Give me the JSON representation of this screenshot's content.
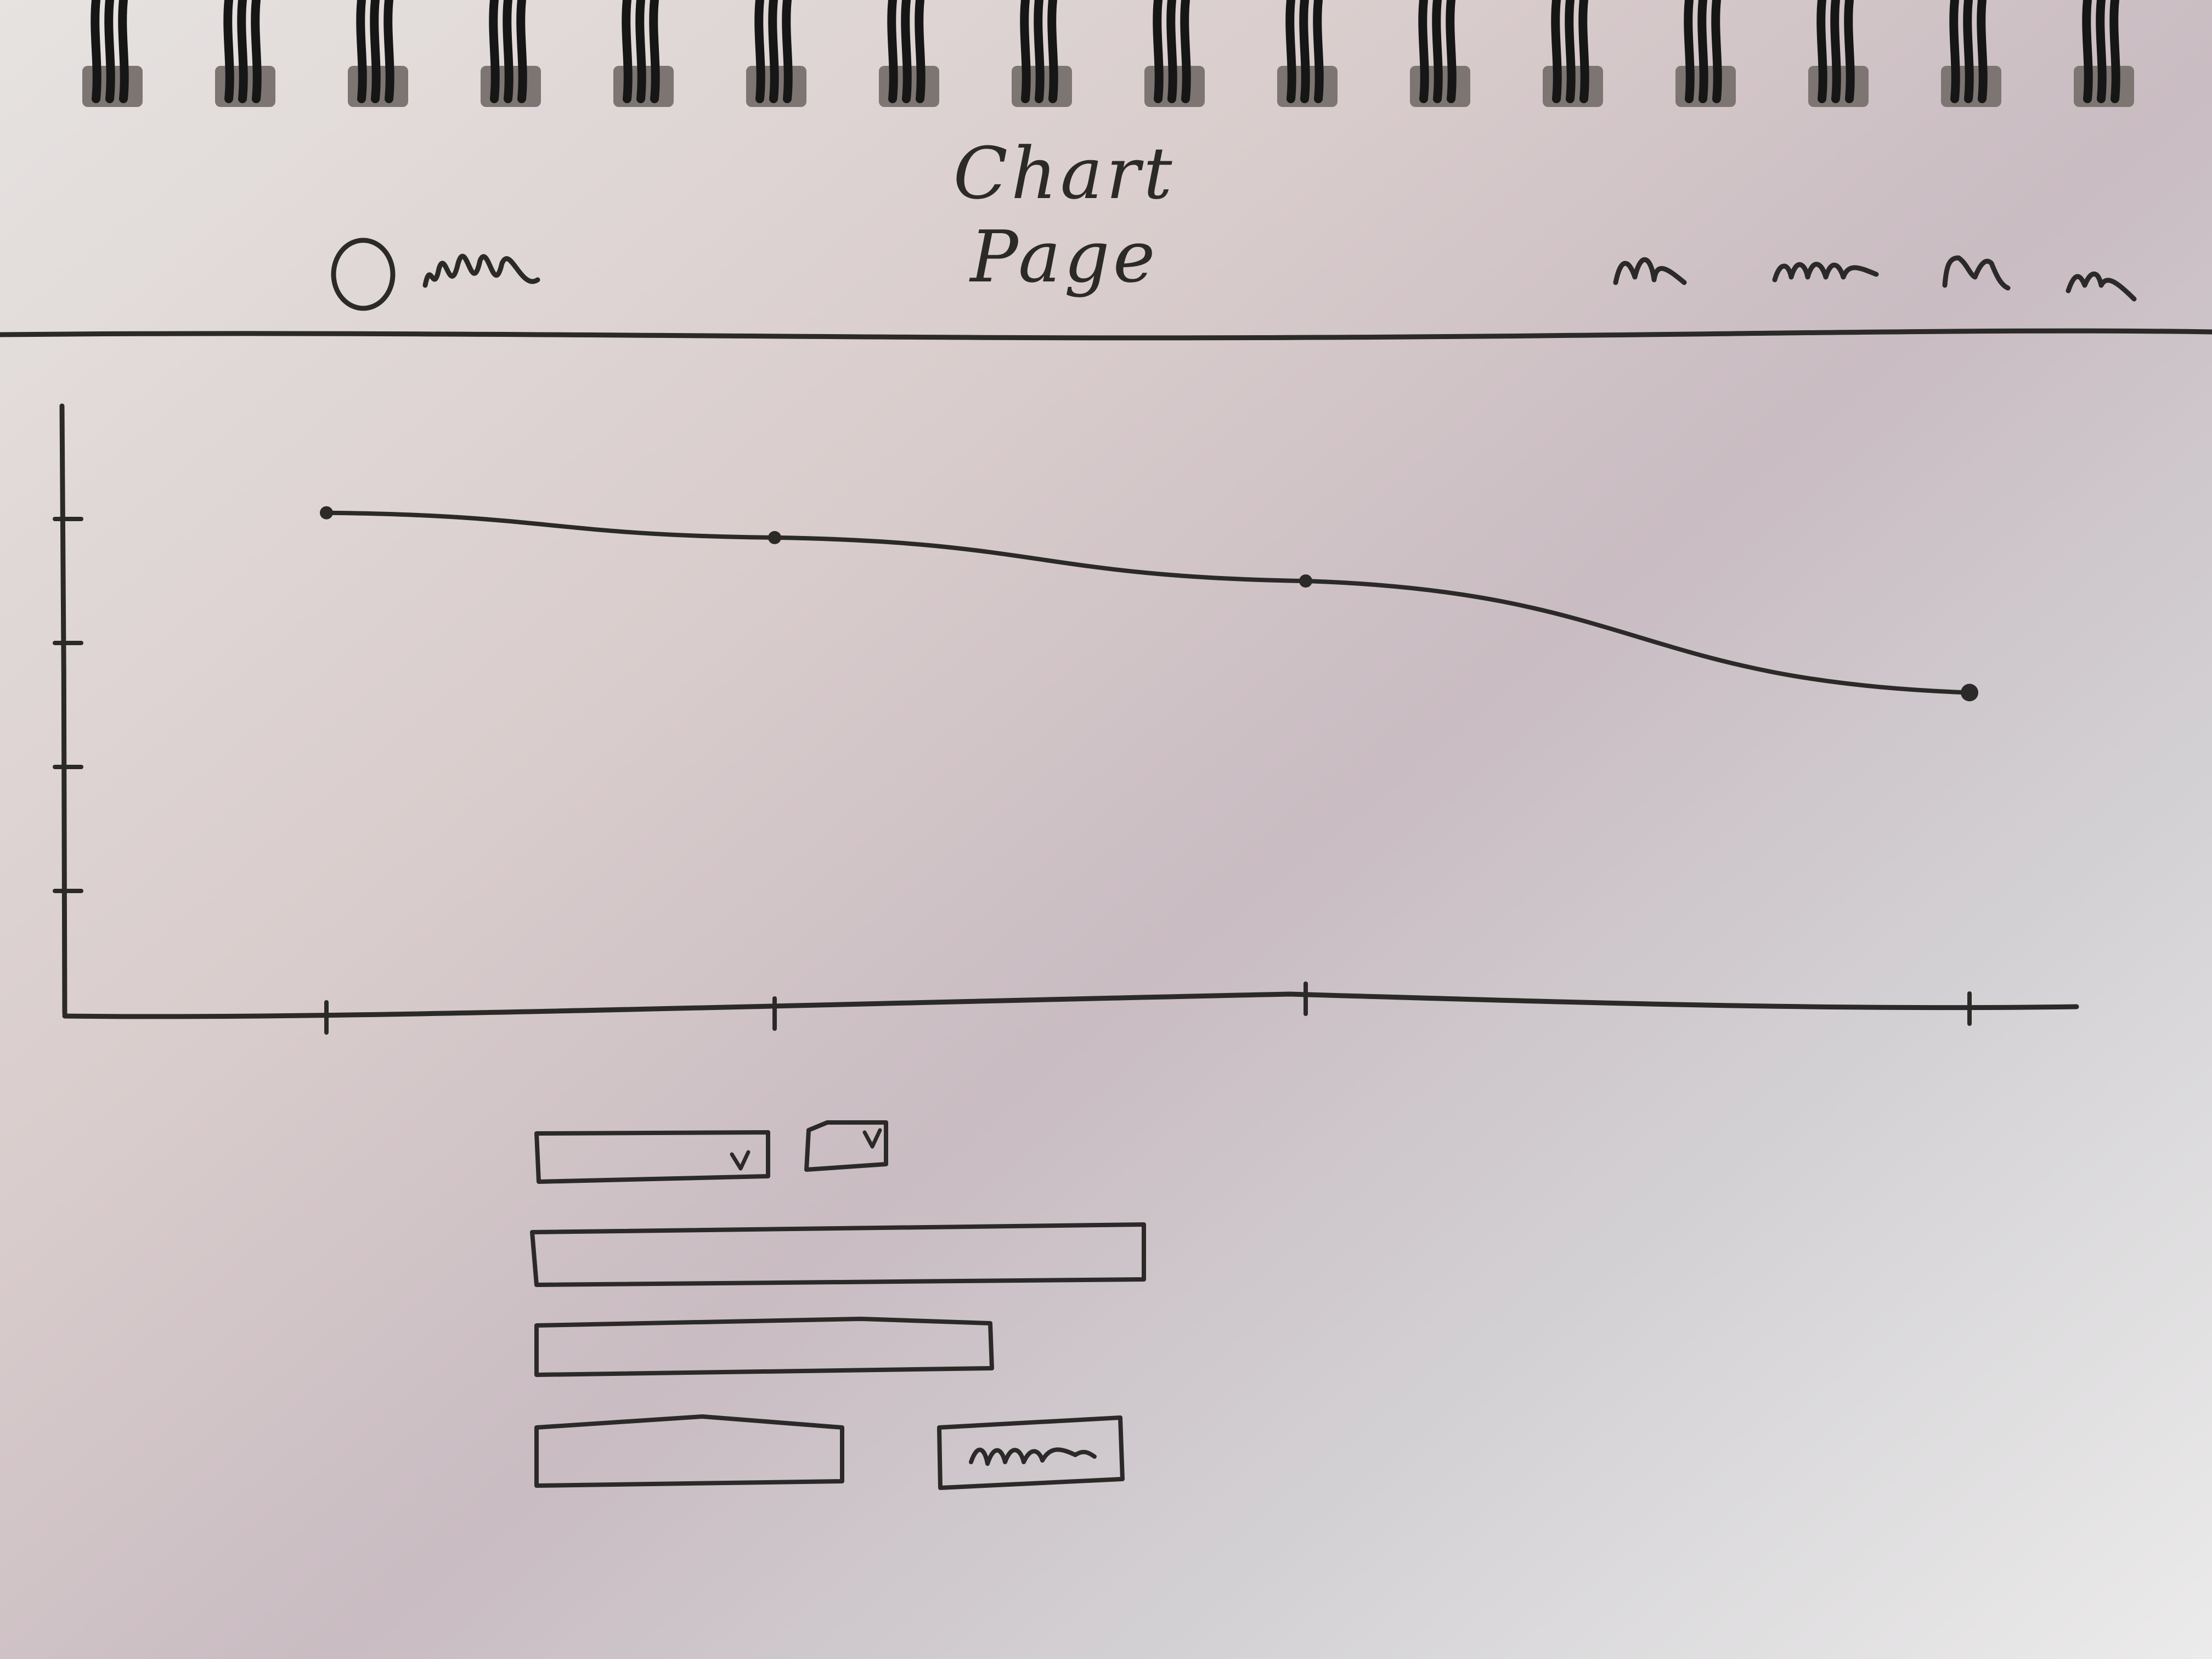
{
  "page": {
    "title": "Chart Page"
  },
  "header": {
    "logo_icon": "circle-logo-icon",
    "brand_label_icon": "scribble-text-icon",
    "nav_items": [
      {
        "id": "nav-1",
        "icon": "scribble-text-icon"
      },
      {
        "id": "nav-2",
        "icon": "scribble-text-icon"
      },
      {
        "id": "nav-3",
        "icon": "scribble-text-icon"
      },
      {
        "id": "nav-4",
        "icon": "scribble-text-icon"
      }
    ]
  },
  "chart_data": {
    "type": "line",
    "x": [
      1,
      2,
      3,
      4
    ],
    "values": [
      4.05,
      3.85,
      3.5,
      2.6
    ],
    "ylim": [
      0,
      5
    ],
    "y_ticks": [
      1,
      2,
      3,
      4
    ],
    "grid": false
  },
  "form": {
    "dropdown_large_icon": "chevron-down-icon",
    "dropdown_small_icon": "chevron-down-icon",
    "submit_button_icon": "scribble-text-icon"
  },
  "colors": {
    "ink": "#2b2a28",
    "paper": "#dcd3d3"
  }
}
